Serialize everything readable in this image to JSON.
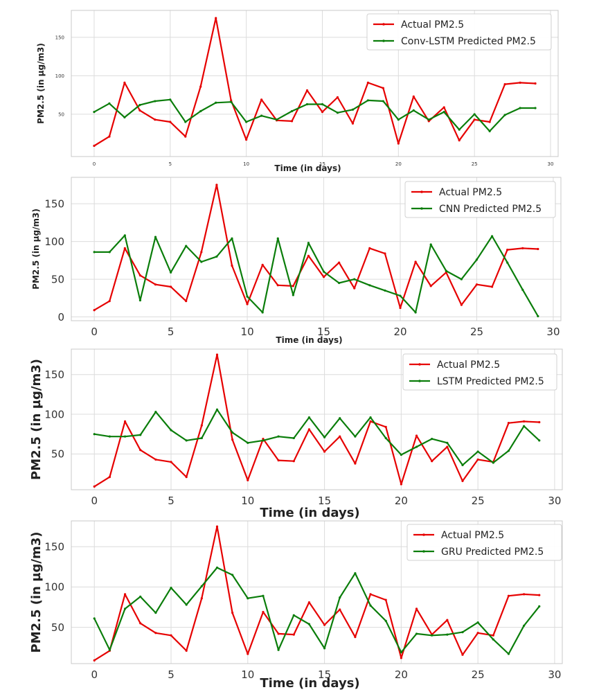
{
  "chart_data": [
    {
      "type": "line",
      "title": "",
      "xlabel": "Time (in days)",
      "ylabel": "PM2.5 (in µg/m3)",
      "xlim": [
        -1.5,
        30.5
      ],
      "ylim": [
        -5,
        185
      ],
      "xticks": [
        0,
        5,
        10,
        15,
        20,
        25,
        30
      ],
      "yticks": [
        50,
        100,
        150
      ],
      "legend_location": "top-right",
      "x": [
        0,
        1,
        2,
        3,
        4,
        5,
        6,
        7,
        8,
        9,
        10,
        11,
        12,
        13,
        14,
        15,
        16,
        17,
        18,
        19,
        20,
        21,
        22,
        23,
        24,
        25,
        26,
        27,
        28,
        29
      ],
      "series": [
        {
          "name": "Actual PM2.5",
          "color": "#e60000",
          "values": [
            9,
            21,
            91,
            55,
            43,
            40,
            21,
            86,
            175,
            68,
            17,
            69,
            42,
            41,
            81,
            53,
            72,
            38,
            91,
            84,
            12,
            73,
            41,
            59,
            16,
            43,
            40,
            89,
            91,
            90
          ]
        },
        {
          "name": "Conv-LSTM Predicted PM2.5",
          "color": "#0a7d0a",
          "values": [
            53,
            64,
            46,
            62,
            67,
            69,
            40,
            54,
            65,
            66,
            40,
            48,
            43,
            54,
            63,
            63,
            52,
            56,
            68,
            67,
            43,
            55,
            43,
            53,
            30,
            50,
            28,
            49,
            58,
            58
          ]
        }
      ]
    },
    {
      "type": "line",
      "title": "",
      "xlabel": "Time (in days)",
      "ylabel": "PM2.5 (in µg/m3)",
      "xlim": [
        -1.5,
        30.5
      ],
      "ylim": [
        -5,
        185
      ],
      "xticks": [
        0,
        5,
        10,
        15,
        20,
        25,
        30
      ],
      "yticks": [
        0,
        50,
        100,
        150
      ],
      "legend_location": "top-right",
      "x": [
        0,
        1,
        2,
        3,
        4,
        5,
        6,
        7,
        8,
        9,
        10,
        11,
        12,
        13,
        14,
        15,
        16,
        17,
        18,
        19,
        20,
        21,
        22,
        23,
        24,
        25,
        26,
        27,
        28,
        29
      ],
      "series": [
        {
          "name": "Actual PM2.5",
          "color": "#e60000",
          "values": [
            9,
            21,
            91,
            55,
            43,
            40,
            21,
            86,
            175,
            68,
            17,
            69,
            42,
            41,
            81,
            53,
            72,
            38,
            91,
            84,
            12,
            73,
            41,
            59,
            16,
            43,
            40,
            89,
            91,
            90
          ]
        },
        {
          "name": "CNN Predicted PM2.5",
          "color": "#0a7d0a",
          "values": [
            86,
            86,
            108,
            22,
            106,
            59,
            94,
            73,
            80,
            104,
            27,
            6,
            104,
            29,
            98,
            60,
            45,
            50,
            42,
            35,
            28,
            6,
            96,
            61,
            50,
            76,
            107,
            72,
            36,
            1
          ]
        }
      ]
    },
    {
      "type": "line",
      "title": "",
      "xlabel": "Time (in days)",
      "ylabel": "PM2.5 (in µg/m3)",
      "xlim": [
        -1.5,
        30.5
      ],
      "ylim": [
        5,
        182
      ],
      "xticks": [
        0,
        5,
        10,
        15,
        20,
        25,
        30
      ],
      "yticks": [
        50,
        100,
        150
      ],
      "legend_location": "top-right",
      "x": [
        0,
        1,
        2,
        3,
        4,
        5,
        6,
        7,
        8,
        9,
        10,
        11,
        12,
        13,
        14,
        15,
        16,
        17,
        18,
        19,
        20,
        21,
        22,
        23,
        24,
        25,
        26,
        27,
        28,
        29
      ],
      "series": [
        {
          "name": "Actual PM2.5",
          "color": "#e60000",
          "values": [
            9,
            21,
            91,
            55,
            43,
            40,
            21,
            86,
            175,
            68,
            17,
            69,
            42,
            41,
            81,
            53,
            72,
            38,
            91,
            84,
            12,
            73,
            41,
            59,
            16,
            43,
            40,
            89,
            91,
            90
          ]
        },
        {
          "name": "LSTM Predicted PM2.5",
          "color": "#0a7d0a",
          "values": [
            75,
            72,
            72,
            74,
            103,
            80,
            67,
            70,
            106,
            77,
            64,
            67,
            72,
            70,
            96,
            71,
            95,
            72,
            96,
            70,
            49,
            59,
            69,
            64,
            36,
            53,
            39,
            54,
            85,
            67
          ]
        }
      ]
    },
    {
      "type": "line",
      "title": "",
      "xlabel": "Time (in days)",
      "ylabel": "PM2.5 (in µg/m3)",
      "xlim": [
        -1.5,
        30.5
      ],
      "ylim": [
        5,
        182
      ],
      "xticks": [
        0,
        5,
        10,
        15,
        20,
        25,
        30
      ],
      "yticks": [
        50,
        100,
        150
      ],
      "legend_location": "top-right",
      "x": [
        0,
        1,
        2,
        3,
        4,
        5,
        6,
        7,
        8,
        9,
        10,
        11,
        12,
        13,
        14,
        15,
        16,
        17,
        18,
        19,
        20,
        21,
        22,
        23,
        24,
        25,
        26,
        27,
        28,
        29
      ],
      "series": [
        {
          "name": "Actual PM2.5",
          "color": "#e60000",
          "values": [
            9,
            21,
            91,
            55,
            43,
            40,
            21,
            86,
            175,
            68,
            17,
            69,
            42,
            41,
            81,
            53,
            72,
            38,
            91,
            84,
            12,
            73,
            41,
            59,
            16,
            43,
            40,
            89,
            91,
            90
          ]
        },
        {
          "name": "GRU Predicted PM2.5",
          "color": "#0a7d0a",
          "values": [
            61,
            22,
            73,
            88,
            68,
            99,
            78,
            101,
            124,
            115,
            86,
            89,
            22,
            65,
            54,
            24,
            87,
            117,
            77,
            58,
            19,
            42,
            40,
            41,
            44,
            56,
            35,
            17,
            52,
            76
          ]
        }
      ]
    }
  ]
}
